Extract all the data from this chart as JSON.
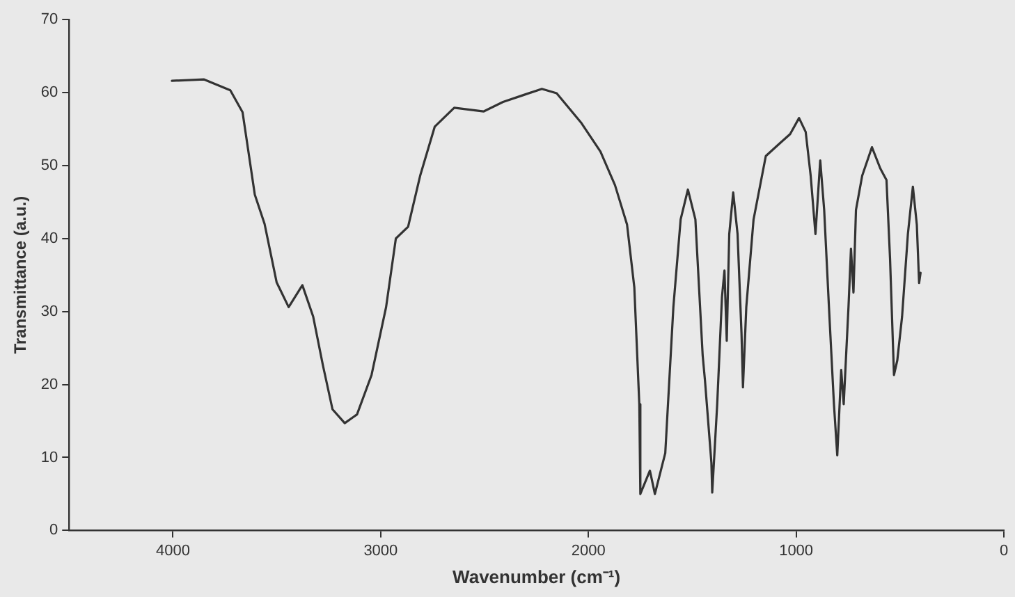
{
  "chart_data": {
    "type": "line",
    "xlabel": "Wavenumber (cm⁻¹)",
    "ylabel": "Transmittance (a.u.)",
    "xlim": [
      4500,
      0
    ],
    "xticks": [
      4000,
      3000,
      2000,
      1000,
      0
    ],
    "ylim": [
      0,
      70
    ],
    "yticks": [
      0,
      10,
      20,
      30,
      40,
      50,
      60,
      70
    ],
    "grid": false,
    "legend": false,
    "marker": "none",
    "line_style": "solid",
    "series": [
      {
        "color": "#333333",
        "x": [
          4005,
          3852,
          3724,
          3665,
          3630,
          3606,
          3559,
          3501,
          3443,
          3377,
          3325,
          3278,
          3232,
          3173,
          3114,
          3044,
          2974,
          2927,
          2868,
          2810,
          2740,
          2646,
          2505,
          2411,
          2318,
          2224,
          2153,
          2036,
          1942,
          1872,
          1814,
          1779,
          1755,
          1750,
          1704,
          1680,
          1630,
          1591,
          1556,
          1521,
          1485,
          1450,
          1439,
          1408,
          1404,
          1380,
          1357,
          1345,
          1334,
          1322,
          1303,
          1282,
          1263,
          1256,
          1240,
          1205,
          1146,
          1076,
          1029,
          986,
          954,
          930,
          907,
          884,
          865,
          842,
          818,
          802,
          783,
          771,
          748,
          736,
          724,
          712,
          682,
          635,
          595,
          565,
          548,
          529,
          513,
          490,
          462,
          438,
          419,
          408,
          401
        ],
        "values": [
          61.6,
          61.8,
          60.3,
          57.3,
          50.6,
          46,
          42,
          34,
          30.6,
          33.6,
          29.3,
          22.6,
          16.6,
          14.7,
          15.9,
          21.3,
          30.6,
          40,
          41.6,
          48.6,
          55.3,
          57.9,
          57.4,
          58.7,
          59.6,
          60.5,
          59.9,
          55.9,
          51.9,
          47.3,
          41.9,
          33.3,
          17.3,
          5,
          8.2,
          5,
          10.6,
          30.6,
          42.6,
          46.7,
          42.6,
          24,
          20.6,
          9.3,
          5.2,
          17.3,
          32,
          35.6,
          26,
          40.6,
          46.3,
          40.6,
          27,
          19.6,
          30.6,
          42.6,
          51.3,
          53.1,
          54.3,
          56.5,
          54.6,
          48.6,
          40.6,
          50.7,
          43.9,
          30.6,
          17.3,
          10.3,
          22,
          17.3,
          30.6,
          38.6,
          32.6,
          43.9,
          48.6,
          52.5,
          49.6,
          48,
          37.3,
          21.3,
          23.3,
          29.3,
          40.6,
          47.1,
          41.9,
          33.9,
          35.3
        ]
      }
    ]
  }
}
